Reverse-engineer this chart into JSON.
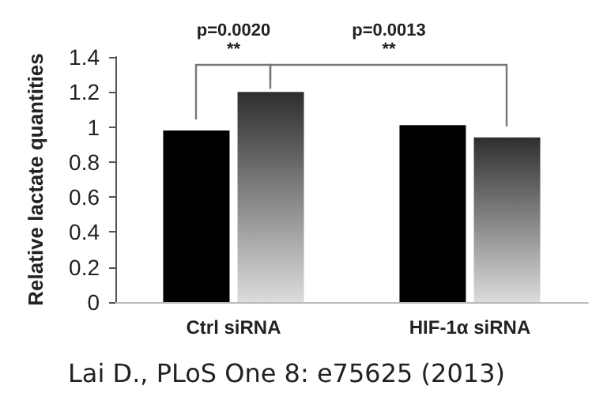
{
  "chart_data": {
    "type": "bar",
    "ylabel": "Relative lactate quantities",
    "categories": [
      "Ctrl siRNA",
      "HIF-1α siRNA"
    ],
    "series": [
      {
        "color": "#000000",
        "values": [
          0.98,
          1.01
        ]
      },
      {
        "color": "#2e2e2e",
        "values": [
          1.2,
          0.94
        ]
      }
    ],
    "ylim": [
      0,
      1.4
    ],
    "yticks": [
      0,
      0.2,
      0.4,
      0.6,
      0.8,
      1,
      1.2,
      1.4
    ],
    "grid": false,
    "annotations": [
      "p=0.0020",
      "**",
      "p=0.0013",
      "**",
      "Lai D., PLoS One 8: e75625 (2013)"
    ]
  }
}
